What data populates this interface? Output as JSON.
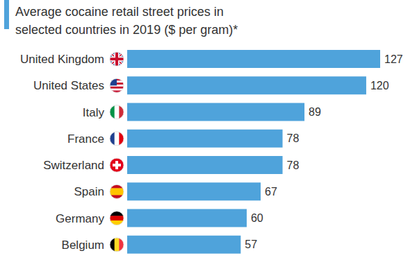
{
  "chart_data": {
    "type": "bar",
    "title": "Average cocaine retail street prices in selected countries in 2019 ($ per gram)*",
    "categories": [
      "United Kingdom",
      "United States",
      "Italy",
      "France",
      "Switzerland",
      "Spain",
      "Germany",
      "Belgium"
    ],
    "values": [
      127,
      120,
      89,
      78,
      78,
      67,
      60,
      57
    ],
    "color": "#4fa3db",
    "orientation": "horizontal",
    "data_labels": true,
    "tick_labels": "y",
    "xlim": [
      0,
      127
    ],
    "grid": false
  }
}
